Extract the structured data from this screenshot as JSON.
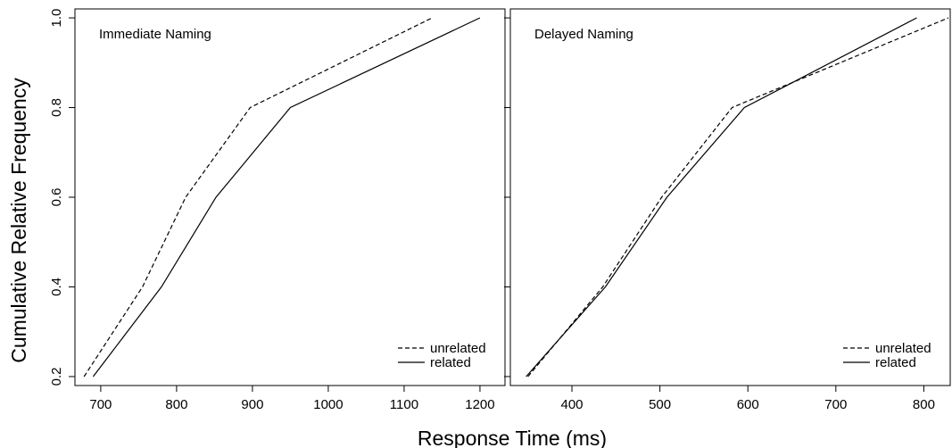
{
  "chart_data": [
    {
      "type": "line",
      "title": "Immediate Naming",
      "xlabel": "Response Time (ms)",
      "ylabel": "Cumulative Relative Frequency",
      "xlim": [
        666,
        1233
      ],
      "ylim": [
        0.18,
        1.02
      ],
      "xticks": [
        700,
        800,
        900,
        1000,
        1100,
        1200
      ],
      "yticks": [
        0.2,
        0.4,
        0.6,
        0.8,
        1.0
      ],
      "ytick_labels": [
        "0.2",
        "0.4",
        "0.6",
        "0.8",
        "1.0"
      ],
      "legend_position": "bottom-right",
      "series": [
        {
          "name": "unrelated",
          "style": "dashed",
          "x": [
            678,
            755,
            812,
            897,
            1137
          ],
          "y": [
            0.2,
            0.4,
            0.6,
            0.8,
            1.0
          ]
        },
        {
          "name": "related",
          "style": "solid",
          "x": [
            690,
            780,
            852,
            950,
            1200
          ],
          "y": [
            0.2,
            0.4,
            0.6,
            0.8,
            1.0
          ]
        }
      ]
    },
    {
      "type": "line",
      "title": "Delayed Naming",
      "xlabel": "Response Time (ms)",
      "ylabel": "Cumulative Relative Frequency",
      "xlim": [
        330,
        830
      ],
      "ylim": [
        0.18,
        1.02
      ],
      "xticks": [
        400,
        500,
        600,
        700,
        800
      ],
      "yticks": [
        0.2,
        0.4,
        0.6,
        0.8,
        1.0
      ],
      "legend_position": "bottom-right",
      "series": [
        {
          "name": "unrelated",
          "style": "dashed",
          "x": [
            350,
            435,
            502,
            582,
            828
          ],
          "y": [
            0.2,
            0.4,
            0.6,
            0.8,
            1.0
          ]
        },
        {
          "name": "related",
          "style": "solid",
          "x": [
            348,
            438,
            508,
            596,
            792
          ],
          "y": [
            0.2,
            0.4,
            0.6,
            0.8,
            1.0
          ]
        }
      ]
    }
  ],
  "axes": {
    "xlabel": "Response Time (ms)",
    "ylabel": "Cumulative Relative Frequency"
  }
}
